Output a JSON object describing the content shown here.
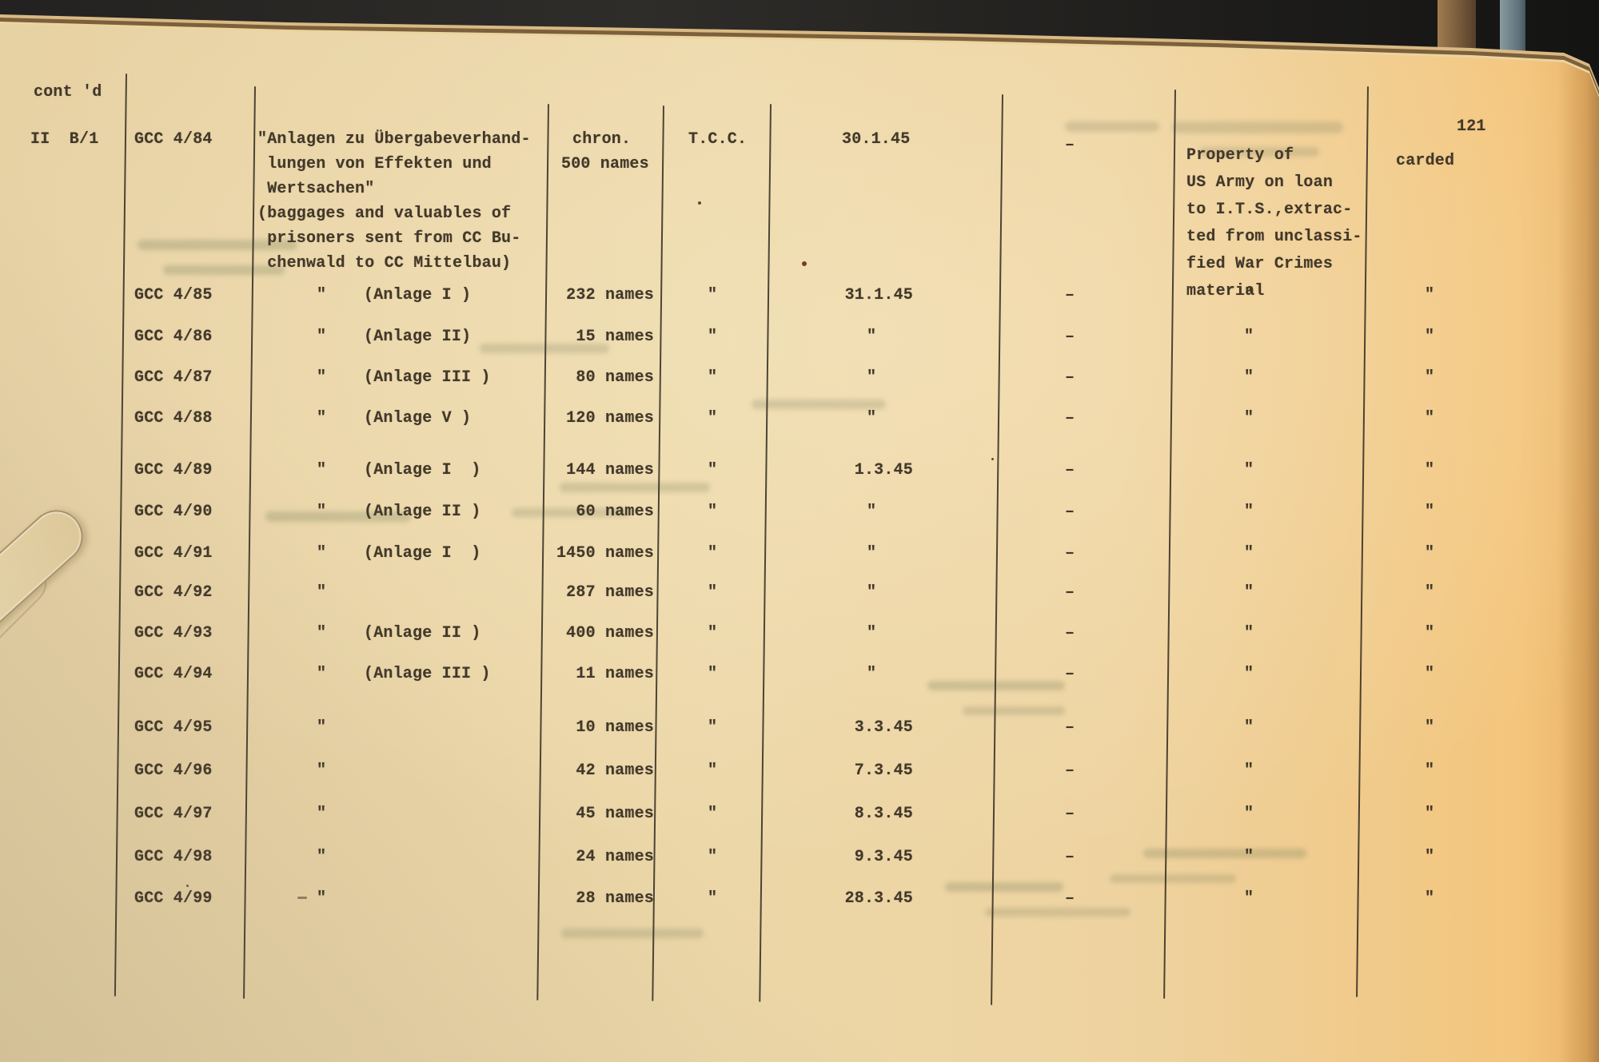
{
  "page": {
    "number": "121",
    "continued": "cont 'd",
    "section": "II  B/1",
    "status_header": "carded"
  },
  "table": {
    "first_row": {
      "code": "GCC 4/84",
      "description": [
        "\"Anlagen zu Übergabeverhand-",
        " lungen von Effekten und",
        " Wertsachen\"",
        "(baggages and valuables of",
        " prisoners sent from CC Bu-",
        " chenwald to CC Mittelbau)"
      ],
      "names_line1": "chron.",
      "names_line2": "500 names",
      "organization": "T.C.C.",
      "date": "30.1.45",
      "dash": "–",
      "remarks": [
        "Property of",
        "US Army on loan",
        "to I.T.S.,extrac-",
        "ted from unclassi-",
        "fied War Crimes",
        "material"
      ],
      "status": "carded"
    },
    "rows": [
      {
        "code": "GCC 4/85",
        "ditto": "\"",
        "annex": "(Anlage I )",
        "names": "232 names",
        "tcc": "\"",
        "date": "31.1.45",
        "dash": "–",
        "remark": "\"",
        "status": "\""
      },
      {
        "code": "GCC 4/86",
        "ditto": "\"",
        "annex": "(Anlage II)",
        "names": "15 names",
        "tcc": "\"",
        "date": "\"",
        "dash": "–",
        "remark": "\"",
        "status": "\""
      },
      {
        "code": "GCC 4/87",
        "ditto": "\"",
        "annex": "(Anlage III )",
        "names": "80 names",
        "tcc": "\"",
        "date": "\"",
        "dash": "–",
        "remark": "\"",
        "status": "\""
      },
      {
        "code": "GCC 4/88",
        "ditto": "\"",
        "annex": "(Anlage V )",
        "names": "120 names",
        "tcc": "\"",
        "date": "\"",
        "dash": "–",
        "remark": "\"",
        "status": "\""
      },
      {
        "code": "GCC 4/89",
        "ditto": "\"",
        "annex": "(Anlage I  )",
        "names": "144 names",
        "tcc": "\"",
        "date": "1.3.45",
        "dash": "–",
        "remark": "\"",
        "status": "\""
      },
      {
        "code": "GCC 4/90",
        "ditto": "\"",
        "annex": "(Anlage II )",
        "names": "60 names",
        "tcc": "\"",
        "date": "\"",
        "dash": "–",
        "remark": "\"",
        "status": "\""
      },
      {
        "code": "GCC 4/91",
        "ditto": "\"",
        "annex": "(Anlage I  )",
        "names": "1450 names",
        "tcc": "\"",
        "date": "\"",
        "dash": "–",
        "remark": "\"",
        "status": "\""
      },
      {
        "code": "GCC 4/92",
        "ditto": "\"",
        "annex": "",
        "names": "287 names",
        "tcc": "\"",
        "date": "\"",
        "dash": "–",
        "remark": "\"",
        "status": "\""
      },
      {
        "code": "GCC 4/93",
        "ditto": "\"",
        "annex": "(Anlage II )",
        "names": "400 names",
        "tcc": "\"",
        "date": "\"",
        "dash": "–",
        "remark": "\"",
        "status": "\""
      },
      {
        "code": "GCC 4/94",
        "ditto": "\"",
        "annex": "(Anlage III )",
        "names": "11 names",
        "tcc": "\"",
        "date": "\"",
        "dash": "–",
        "remark": "\"",
        "status": "\""
      },
      {
        "code": "GCC 4/95",
        "ditto": "\"",
        "annex": "",
        "names": "10 names",
        "tcc": "\"",
        "date": "3.3.45",
        "dash": "–",
        "remark": "\"",
        "status": "\""
      },
      {
        "code": "GCC 4/96",
        "ditto": "\"",
        "annex": "",
        "names": "42 names",
        "tcc": "\"",
        "date": "7.3.45",
        "dash": "–",
        "remark": "\"",
        "status": "\""
      },
      {
        "code": "GCC 4/97",
        "ditto": "\"",
        "annex": "",
        "names": "45 names",
        "tcc": "\"",
        "date": "8.3.45",
        "dash": "–",
        "remark": "\"",
        "status": "\""
      },
      {
        "code": "GCC 4/98",
        "ditto": "\"",
        "annex": "",
        "names": "24 names",
        "tcc": "\"",
        "date": "9.3.45",
        "dash": "–",
        "remark": "\"",
        "status": "\""
      },
      {
        "code": "GCC 4/99",
        "ditto": "\"",
        "annex": "",
        "names": "28 names",
        "tcc": "\"",
        "date": "28.3.45",
        "dash": "–",
        "remark": "\"",
        "status": "\""
      }
    ]
  }
}
